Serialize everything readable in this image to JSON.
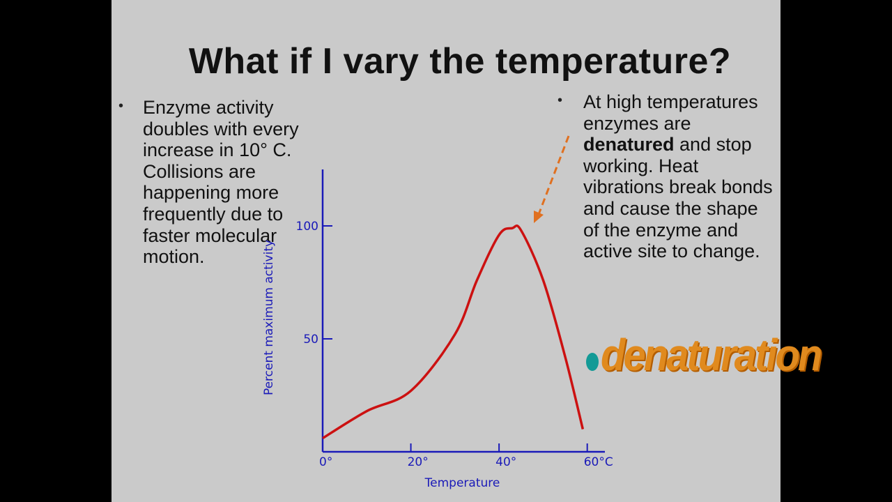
{
  "slide": {
    "title": "What if I vary the temperature?",
    "left_bullet": "Enzyme activity doubles with every increase in 10° C.  Collisions are happening more frequently due to faster molecular motion.",
    "right_bullet": {
      "before": "At high temperatures enzymes are ",
      "bold": "denatured",
      "after": " and stop working. Heat vibrations break bonds and cause the shape of the enzyme and active site to change."
    },
    "word_art": "denaturation"
  },
  "chart_data": {
    "type": "line",
    "x_label": "Temperature",
    "y_label": "Percent maximum activity",
    "x": [
      0,
      10,
      20,
      30,
      35,
      40,
      43,
      45,
      50,
      55,
      59
    ],
    "values": [
      6,
      18,
      27,
      52,
      76,
      96,
      99,
      98,
      76,
      42,
      10
    ],
    "color": "#cc1111",
    "axis_color": "#1a1ab8",
    "xlim": [
      0,
      64
    ],
    "ylim": [
      0,
      125
    ],
    "xticks": [
      {
        "value": 0,
        "label": "0°"
      },
      {
        "value": 20,
        "label": "20°"
      },
      {
        "value": 40,
        "label": "40°"
      },
      {
        "value": 60,
        "label": "60°C"
      }
    ],
    "yticks": [
      50,
      100
    ]
  }
}
